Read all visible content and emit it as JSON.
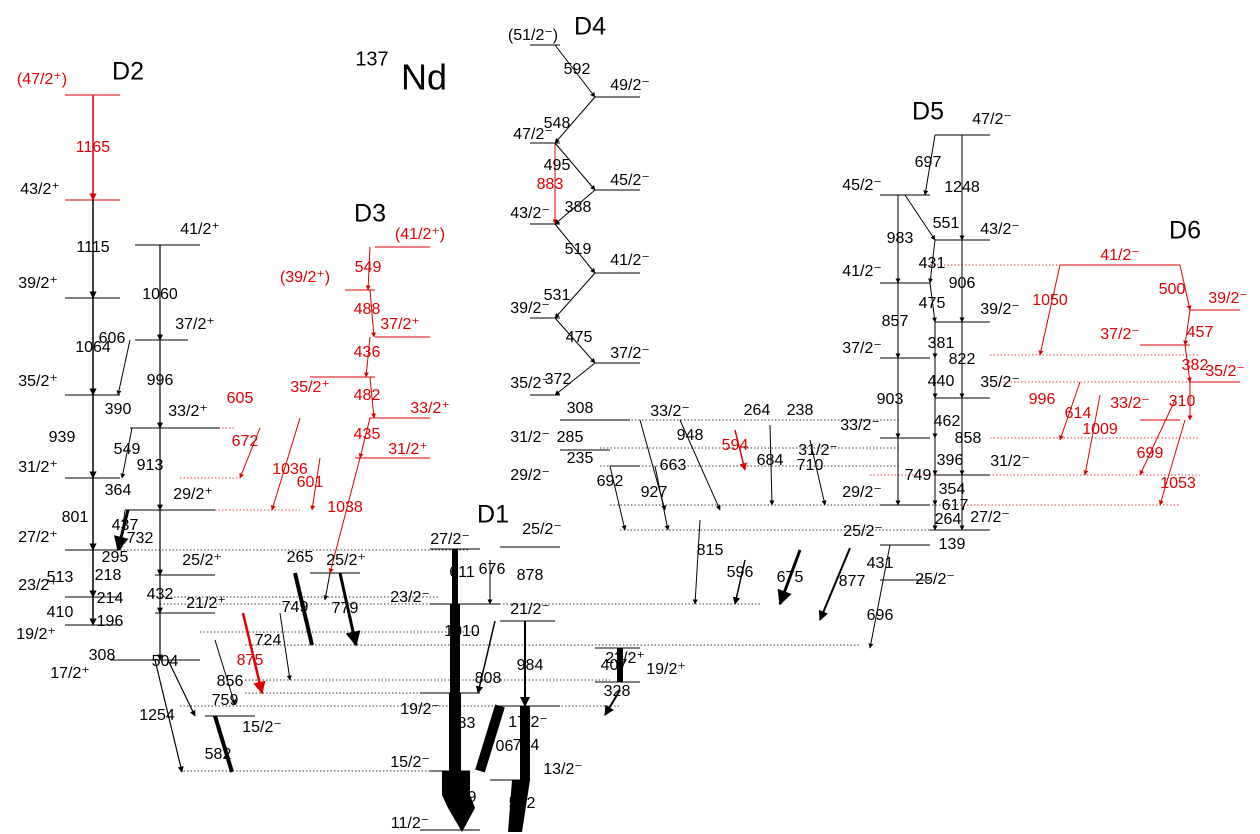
{
  "title": {
    "mass": "137",
    "element": "Nd"
  },
  "bands": [
    {
      "name": "D1",
      "levels": [
        "27/2⁻",
        "25/2⁻",
        "23/2⁻",
        "21/2⁻",
        "23/2⁺",
        "19/2⁺",
        "19/2⁻",
        "17/2⁻",
        "15/2⁻",
        "13/2⁻",
        "11/2⁻"
      ],
      "gammas": [
        611,
        676,
        878,
        1010,
        808,
        984,
        407,
        328,
        883,
        706,
        794,
        669,
        582
      ]
    },
    {
      "name": "D2",
      "levels": [
        "(47/2⁺)",
        "43/2⁺",
        "39/2⁺",
        "35/2⁺",
        "31/2⁺",
        "27/2⁺",
        "23/2⁺",
        "19/2⁺",
        "17/2⁺",
        "41/2⁺",
        "37/2⁺",
        "33/2⁺",
        "29/2⁺",
        "25/2⁺",
        "21/2⁺",
        "15/2⁻"
      ],
      "gammas": [
        1165,
        1115,
        1064,
        939,
        801,
        513,
        410,
        308,
        606,
        390,
        549,
        364,
        437,
        295,
        218,
        214,
        196,
        1060,
        996,
        913,
        732,
        432,
        504,
        856,
        759,
        1254,
        582
      ]
    },
    {
      "name": "D3",
      "levels": [
        "(41/2⁺)",
        "(39/2⁺)",
        "37/2⁺",
        "35/2⁺",
        "33/2⁺",
        "31/2⁺",
        "25/2⁺"
      ],
      "gammas": [
        549,
        488,
        436,
        482,
        605,
        435,
        672,
        1036,
        601,
        1038,
        265,
        749,
        779,
        724,
        875
      ]
    },
    {
      "name": "D4",
      "levels": [
        "(51/2⁻)",
        "49/2⁻",
        "47/2⁻",
        "45/2⁻",
        "43/2⁻",
        "41/2⁻",
        "39/2⁻",
        "37/2⁻",
        "35/2⁻",
        "33/2⁻",
        "31/2⁻",
        "29/2⁻",
        "31/2⁻"
      ],
      "gammas": [
        592,
        548,
        495,
        883,
        388,
        519,
        531,
        475,
        372,
        308,
        285,
        235,
        948,
        663,
        692,
        927,
        264,
        238,
        594,
        684,
        710
      ]
    },
    {
      "name": "D5",
      "levels": [
        "47/2⁻",
        "45/2⁻",
        "43/2⁻",
        "41/2⁻",
        "39/2⁻",
        "37/2⁻",
        "35/2⁻",
        "33/2⁻",
        "31/2⁻",
        "29/2⁻",
        "27/2⁻",
        "25/2⁻",
        "25/2⁻"
      ],
      "gammas": [
        697,
        1248,
        551,
        983,
        431,
        906,
        475,
        857,
        381,
        822,
        440,
        903,
        462,
        858,
        396,
        749,
        354,
        617,
        264,
        139,
        431,
        815,
        596,
        675,
        877,
        696
      ]
    },
    {
      "name": "D6",
      "levels": [
        "41/2⁻",
        "39/2⁻",
        "37/2⁻",
        "35/2⁻",
        "33/2⁻"
      ],
      "gammas": [
        1050,
        500,
        457,
        382,
        996,
        310,
        614,
        1009,
        699,
        1053
      ]
    }
  ]
}
